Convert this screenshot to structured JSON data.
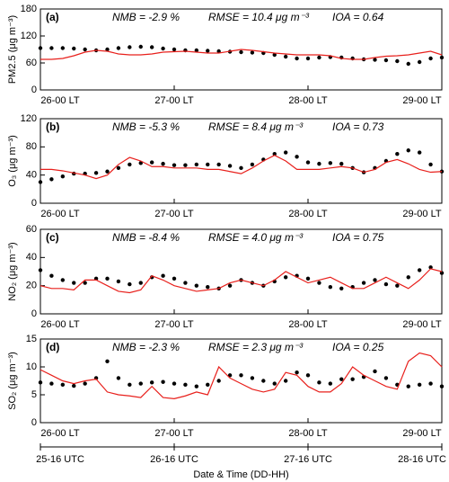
{
  "chart_data": [
    {
      "type": "scatter-line",
      "label": "(a)",
      "ylabel": "PM2.5 (μg m⁻³)",
      "annotations": [
        "NMB = -2.9 %",
        "RMSE = 10.4 μg m⁻³",
        "IOA = 0.64"
      ],
      "x": [
        0,
        2,
        4,
        6,
        8,
        10,
        12,
        14,
        16,
        18,
        20,
        22,
        24,
        26,
        28,
        30,
        32,
        34,
        36,
        38,
        40,
        42,
        44,
        46,
        48,
        50,
        52,
        54,
        56,
        58,
        60,
        62,
        64,
        66,
        68,
        70,
        72
      ],
      "series": [
        {
          "color": "#000000",
          "style": "dots",
          "values": [
            93,
            93,
            93,
            92,
            90,
            88,
            90,
            93,
            95,
            96,
            95,
            92,
            90,
            88,
            88,
            87,
            86,
            85,
            84,
            83,
            82,
            78,
            74,
            70,
            70,
            72,
            73,
            72,
            70,
            68,
            67,
            66,
            64,
            58,
            62,
            70,
            72
          ]
        },
        {
          "color": "#e8201c",
          "style": "line",
          "values": [
            68,
            68,
            70,
            76,
            84,
            88,
            86,
            80,
            78,
            78,
            80,
            84,
            85,
            86,
            84,
            82,
            82,
            86,
            90,
            88,
            85,
            82,
            80,
            78,
            78,
            78,
            76,
            70,
            68,
            68,
            72,
            75,
            76,
            78,
            82,
            86,
            78
          ]
        }
      ],
      "xlim": [
        0,
        72
      ],
      "xticks": [
        {
          "value": 0,
          "label": "26-00 LT"
        },
        {
          "value": 24,
          "label": "27-00 LT"
        },
        {
          "value": 48,
          "label": "28-00 LT"
        },
        {
          "value": 72,
          "label": "29-00 LT"
        }
      ],
      "ylim": [
        0,
        180
      ],
      "yticks": [
        0,
        60,
        120,
        180
      ]
    },
    {
      "type": "scatter-line",
      "label": "(b)",
      "ylabel": "O₃ (μg m⁻³)",
      "annotations": [
        "NMB = -5.3 %",
        "RMSE = 8.4 μg m⁻³",
        "IOA = 0.73"
      ],
      "x": [
        0,
        2,
        4,
        6,
        8,
        10,
        12,
        14,
        16,
        18,
        20,
        22,
        24,
        26,
        28,
        30,
        32,
        34,
        36,
        38,
        40,
        42,
        44,
        46,
        48,
        50,
        52,
        54,
        56,
        58,
        60,
        62,
        64,
        66,
        68,
        70,
        72
      ],
      "series": [
        {
          "color": "#000000",
          "style": "dots",
          "values": [
            30,
            34,
            38,
            42,
            42,
            43,
            45,
            50,
            55,
            57,
            58,
            56,
            54,
            54,
            55,
            55,
            55,
            53,
            50,
            55,
            62,
            70,
            72,
            66,
            58,
            56,
            57,
            56,
            50,
            44,
            50,
            60,
            70,
            75,
            72,
            55,
            45
          ]
        },
        {
          "color": "#e8201c",
          "style": "line",
          "values": [
            48,
            48,
            46,
            43,
            40,
            35,
            40,
            55,
            65,
            60,
            52,
            52,
            50,
            50,
            50,
            48,
            48,
            45,
            42,
            50,
            60,
            68,
            60,
            48,
            48,
            48,
            50,
            52,
            50,
            44,
            48,
            58,
            62,
            56,
            48,
            44,
            45
          ]
        }
      ],
      "xlim": [
        0,
        72
      ],
      "xticks": [
        {
          "value": 0,
          "label": "26-00 LT"
        },
        {
          "value": 24,
          "label": "27-00 LT"
        },
        {
          "value": 48,
          "label": "28-00 LT"
        },
        {
          "value": 72,
          "label": "29-00 LT"
        }
      ],
      "ylim": [
        0,
        120
      ],
      "yticks": [
        0,
        40,
        80,
        120
      ]
    },
    {
      "type": "scatter-line",
      "label": "(c)",
      "ylabel": "NO₂ (μg m⁻³)",
      "annotations": [
        "NMB = -8.4 %",
        "RMSE = 4.0 μg m⁻³",
        "IOA = 0.75"
      ],
      "x": [
        0,
        2,
        4,
        6,
        8,
        10,
        12,
        14,
        16,
        18,
        20,
        22,
        24,
        26,
        28,
        30,
        32,
        34,
        36,
        38,
        40,
        42,
        44,
        46,
        48,
        50,
        52,
        54,
        56,
        58,
        60,
        62,
        64,
        66,
        68,
        70,
        72
      ],
      "series": [
        {
          "color": "#000000",
          "style": "dots",
          "values": [
            31,
            27,
            24,
            22,
            22,
            25,
            25,
            23,
            21,
            22,
            26,
            27,
            25,
            22,
            20,
            19,
            18,
            20,
            24,
            22,
            20,
            23,
            26,
            27,
            25,
            22,
            19,
            18,
            19,
            22,
            24,
            21,
            20,
            26,
            31,
            33,
            29
          ]
        },
        {
          "color": "#e8201c",
          "style": "line",
          "values": [
            20,
            18,
            18,
            17,
            24,
            24,
            20,
            16,
            15,
            17,
            27,
            24,
            20,
            18,
            16,
            17,
            18,
            22,
            24,
            22,
            20,
            24,
            30,
            26,
            22,
            24,
            26,
            22,
            18,
            18,
            22,
            26,
            22,
            18,
            24,
            32,
            30
          ]
        }
      ],
      "xlim": [
        0,
        72
      ],
      "xticks": [
        {
          "value": 0,
          "label": "26-00 LT"
        },
        {
          "value": 24,
          "label": "27-00 LT"
        },
        {
          "value": 48,
          "label": "28-00 LT"
        },
        {
          "value": 72,
          "label": "29-00 LT"
        }
      ],
      "ylim": [
        0,
        60
      ],
      "yticks": [
        0,
        20,
        40,
        60
      ]
    },
    {
      "type": "scatter-line",
      "label": "(d)",
      "ylabel": "SO₂ (μg m⁻³)",
      "annotations": [
        "NMB = -2.3 %",
        "RMSE = 2.3 μg m⁻³",
        "IOA = 0.25"
      ],
      "x": [
        0,
        2,
        4,
        6,
        8,
        10,
        12,
        14,
        16,
        18,
        20,
        22,
        24,
        26,
        28,
        30,
        32,
        34,
        36,
        38,
        40,
        42,
        44,
        46,
        48,
        50,
        52,
        54,
        56,
        58,
        60,
        62,
        64,
        66,
        68,
        70,
        72
      ],
      "series": [
        {
          "color": "#000000",
          "style": "dots",
          "values": [
            7.2,
            7,
            6.8,
            6.6,
            7,
            8,
            11,
            8,
            6.8,
            7,
            7.2,
            7.3,
            7,
            6.8,
            6.5,
            6.8,
            7.5,
            8.5,
            8.5,
            8,
            7.5,
            7,
            7.5,
            9,
            8.5,
            7.2,
            7,
            7.8,
            7.8,
            8.2,
            9.2,
            8,
            6.8,
            6.5,
            6.8,
            7,
            6.5
          ]
        },
        {
          "color": "#e8201c",
          "style": "line",
          "values": [
            9.5,
            8.5,
            7.5,
            7,
            7.5,
            7.8,
            5.5,
            5,
            4.8,
            4.5,
            6.5,
            4.5,
            4.3,
            4.8,
            5.5,
            5,
            10,
            8,
            7,
            6,
            5.5,
            6,
            9,
            8.5,
            6.5,
            5.5,
            5.5,
            7,
            10,
            8.5,
            7.5,
            6.5,
            6,
            11,
            12.5,
            12,
            10
          ]
        }
      ],
      "xlim": [
        0,
        72
      ],
      "xticks": [
        {
          "value": 0,
          "label": "26-00 LT"
        },
        {
          "value": 24,
          "label": "27-00 LT"
        },
        {
          "value": 48,
          "label": "28-00 LT"
        },
        {
          "value": 72,
          "label": "29-00 LT"
        }
      ],
      "x2ticks": [
        {
          "value": 0,
          "label": "25-16 UTC"
        },
        {
          "value": 24,
          "label": "26-16 UTC"
        },
        {
          "value": 48,
          "label": "27-16 UTC"
        },
        {
          "value": 72,
          "label": "28-16 UTC"
        }
      ],
      "xlabel": "Date & Time (DD-HH)",
      "ylim": [
        0,
        15
      ],
      "yticks": [
        0,
        5,
        10,
        15
      ]
    }
  ]
}
